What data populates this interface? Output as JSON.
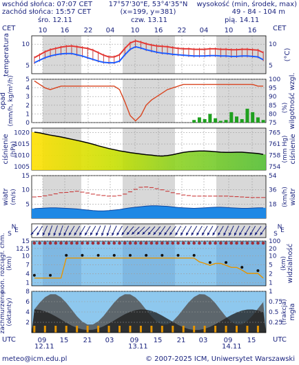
{
  "header": {
    "sunrise": "wschód słońca: 07:07 CET",
    "sunset": "zachód słońca: 15:57 CET",
    "coords": "17°57'30\"E, 53°4'35\"N",
    "grid": "(x=199, y=381)",
    "height_title": "wysokość (min, środek, max)",
    "height_values": "49 - 84 - 104 m"
  },
  "footer": {
    "email": "meteo@icm.edu.pl",
    "copyright": "© 2007-2025 ICM, Uniwersytet Warszawski"
  },
  "time_axis": {
    "zone": "CET",
    "bottom_zone": "UTC",
    "days": [
      "śro. 12.11",
      "czw. 13.11",
      "pią. 14.11"
    ],
    "top_hours": [
      "10",
      "16",
      "22",
      "04",
      "10",
      "16",
      "22",
      "04",
      "10",
      "16"
    ],
    "bottom_hours": [
      "09",
      "15",
      "21",
      "03",
      "09",
      "15",
      "21",
      "03",
      "09",
      "15"
    ],
    "bottom_days": [
      "12.11",
      "13.11",
      "14.11"
    ]
  },
  "colors": {
    "temp_max": "#e53935",
    "temp_min": "#1e5cff",
    "pressure_line": "#000000",
    "humidity": "#d9441f",
    "precip": "#1fa01f",
    "wind_band": "#1e88e5",
    "night_band": "#d8d8d8"
  },
  "chart_data": [
    {
      "type": "line",
      "name": "temperature",
      "ylabel": "temperatura",
      "units_right": "(°C)",
      "ylim": [
        3,
        12
      ],
      "yticks": [
        5,
        10
      ],
      "series": [
        {
          "name": "max",
          "values": [
            6.8,
            7.5,
            8.2,
            8.7,
            9.0,
            9.3,
            9.5,
            9.6,
            9.4,
            9.2,
            9.0,
            8.6,
            8.0,
            7.4,
            7.0,
            7.0,
            7.5,
            9.0,
            10.3,
            10.8,
            10.5,
            10.1,
            9.8,
            9.6,
            9.5,
            9.4,
            9.2,
            9.0,
            8.9,
            8.9,
            8.8,
            8.8,
            8.8,
            8.9,
            8.9,
            8.8,
            8.8,
            8.7,
            8.7,
            8.8,
            8.8,
            8.7,
            8.6,
            8.0
          ]
        },
        {
          "name": "min",
          "values": [
            5.6,
            6.2,
            6.8,
            7.2,
            7.5,
            7.7,
            7.8,
            7.8,
            7.5,
            7.2,
            6.8,
            6.4,
            6.0,
            5.7,
            5.6,
            5.6,
            6.0,
            7.5,
            8.8,
            9.4,
            9.1,
            8.7,
            8.4,
            8.1,
            7.9,
            7.8,
            7.6,
            7.5,
            7.4,
            7.3,
            7.2,
            7.2,
            7.2,
            7.3,
            7.3,
            7.2,
            7.2,
            7.1,
            7.1,
            7.2,
            7.2,
            7.1,
            7.0,
            6.3
          ]
        }
      ]
    },
    {
      "type": "bar",
      "name": "precipitation",
      "ylabel": "opad",
      "units_left": "(mm/h, kg/m²/h)",
      "ylabel_right": "wilgotność wzgl.",
      "units_right": "(%)",
      "ylim": [
        0,
        5
      ],
      "yticks": [
        0,
        1,
        2,
        3,
        4,
        5
      ],
      "y2lim": [
        75,
        100
      ],
      "y2ticks": [
        75,
        80,
        85,
        90,
        95,
        100
      ],
      "precip_values": [
        0,
        0,
        0,
        0,
        0,
        0,
        0,
        0,
        0,
        0,
        0,
        0,
        0,
        0,
        0,
        0,
        0,
        0,
        0,
        0,
        0,
        0,
        0,
        0,
        0,
        0,
        0,
        0,
        0,
        0,
        0.3,
        0.6,
        0.4,
        1.0,
        0.5,
        0.2,
        0.3,
        1.2,
        0.7,
        0.4,
        1.6,
        1.2,
        0.6,
        0.3
      ],
      "humidity": [
        99,
        97,
        95,
        94,
        95,
        96,
        96,
        96,
        96,
        96,
        96,
        96,
        96,
        96,
        96,
        96,
        94,
        87,
        79,
        76,
        79,
        85,
        88,
        90,
        92,
        94,
        95,
        96,
        97,
        97,
        97,
        97,
        97,
        97,
        97,
        97,
        97,
        97,
        97,
        97,
        97,
        97,
        96,
        96
      ]
    },
    {
      "type": "area",
      "name": "pressure",
      "ylabel": "ciśnienie",
      "units_left": "(hPa)",
      "units_right": "(mm Hg)",
      "ylim": [
        1003.5,
        1022
      ],
      "yticks": [
        1005,
        1010,
        1015,
        1020
      ],
      "y2ticks": [
        "754",
        "758",
        "761",
        "765"
      ],
      "values": [
        1020.2,
        1019.9,
        1019.4,
        1018.9,
        1018.5,
        1018.1,
        1017.6,
        1017.1,
        1016.6,
        1016.1,
        1015.5,
        1014.9,
        1014.2,
        1013.6,
        1013.0,
        1012.5,
        1012.0,
        1011.6,
        1011.2,
        1010.9,
        1010.6,
        1010.3,
        1010.1,
        1009.8,
        1009.7,
        1009.9,
        1010.3,
        1010.8,
        1011.3,
        1011.6,
        1011.8,
        1011.9,
        1011.9,
        1011.8,
        1011.6,
        1011.4,
        1011.3,
        1011.3,
        1011.4,
        1011.4,
        1011.2,
        1011.0,
        1010.8,
        1010.4
      ]
    },
    {
      "type": "area",
      "name": "wind",
      "ylabel": "wiatr",
      "units_left": "(m/s)",
      "units_right": "(km/h)",
      "ylim": [
        0,
        15
      ],
      "yticks": [
        5,
        10,
        15
      ],
      "y2ticks": [
        "18",
        "36",
        "54"
      ],
      "speed": [
        3.4,
        3.5,
        3.6,
        3.7,
        3.7,
        3.6,
        3.5,
        3.4,
        3.3,
        3.1,
        2.9,
        2.7,
        2.6,
        2.6,
        2.7,
        2.9,
        3.1,
        3.4,
        3.7,
        3.9,
        4.1,
        4.3,
        4.4,
        4.4,
        4.3,
        4.2,
        4.0,
        3.8,
        3.7,
        3.6,
        3.5,
        3.6,
        3.7,
        3.8,
        3.9,
        3.9,
        3.8,
        3.7,
        3.6,
        3.5,
        3.5,
        3.6,
        3.7,
        3.7
      ],
      "gusts": [
        7.5,
        7.6,
        7.9,
        8.2,
        8.6,
        9.0,
        9.1,
        9.3,
        9.5,
        9.2,
        8.9,
        8.5,
        8.2,
        8.0,
        7.8,
        7.8,
        8.0,
        8.5,
        9.3,
        10.2,
        10.9,
        11.0,
        10.8,
        10.4,
        10.0,
        9.5,
        9.0,
        8.6,
        8.2,
        8.0,
        7.8,
        7.8,
        7.8,
        7.8,
        7.8,
        7.8,
        7.8,
        7.7,
        7.6,
        7.5,
        7.4,
        7.3,
        7.3,
        7.3
      ]
    },
    {
      "type": "scatter",
      "name": "wind-direction",
      "directions": [
        "S",
        "N",
        "E"
      ],
      "arrow_deg": [
        220,
        210,
        205,
        200,
        200,
        200,
        205,
        210,
        210,
        210,
        210,
        210,
        205,
        200,
        200,
        205,
        210,
        215,
        220,
        225,
        225,
        225,
        220,
        220,
        215,
        215,
        215,
        210,
        210,
        210,
        210,
        210,
        210,
        210,
        210,
        210,
        205,
        205,
        205,
        210,
        210,
        210,
        215,
        215
      ]
    },
    {
      "type": "scatter",
      "name": "clouds-visibility",
      "ylabel": "pion. rozciągł. chm.",
      "units_left": "(km)",
      "ylabel_right": "widzialność",
      "units_right": "(km)",
      "ylim": [
        0,
        15
      ],
      "yticks": [
        1.0,
        4.0,
        7.0,
        10.0,
        12.5,
        15.0
      ],
      "y2ticks": [
        "1",
        "2",
        "5",
        "10",
        "20",
        "100"
      ],
      "visibility": [
        0.1,
        0.1,
        0.1,
        0.1,
        0.1,
        0.1,
        1.0,
        1.4,
        1.3,
        1.4,
        1.4,
        1.3,
        1.3,
        1.4,
        1.4,
        1.5,
        1.5,
        1.7,
        1.9,
        1.9,
        1.9,
        1.7,
        1.6,
        1.6,
        1.6,
        1.4,
        1.4,
        1.4,
        1.3,
        1.2,
        1.0,
        0.7,
        0.6,
        0.5,
        0.6,
        0.6,
        0.5,
        0.4,
        0.4,
        0.3,
        0.2,
        0.2,
        0.2,
        0.1
      ]
    },
    {
      "type": "area",
      "name": "cloud-cover",
      "ylabel": "zachmurzenie",
      "units_left": "(oktanty)",
      "ylabel_right": "(frakcja)",
      "units_right": "mgła",
      "ylim": [
        0,
        8
      ],
      "yticks": [
        2,
        4,
        6,
        8
      ],
      "y2ticks": [
        "0.25",
        "0.5",
        "0.75",
        "1"
      ]
    }
  ]
}
